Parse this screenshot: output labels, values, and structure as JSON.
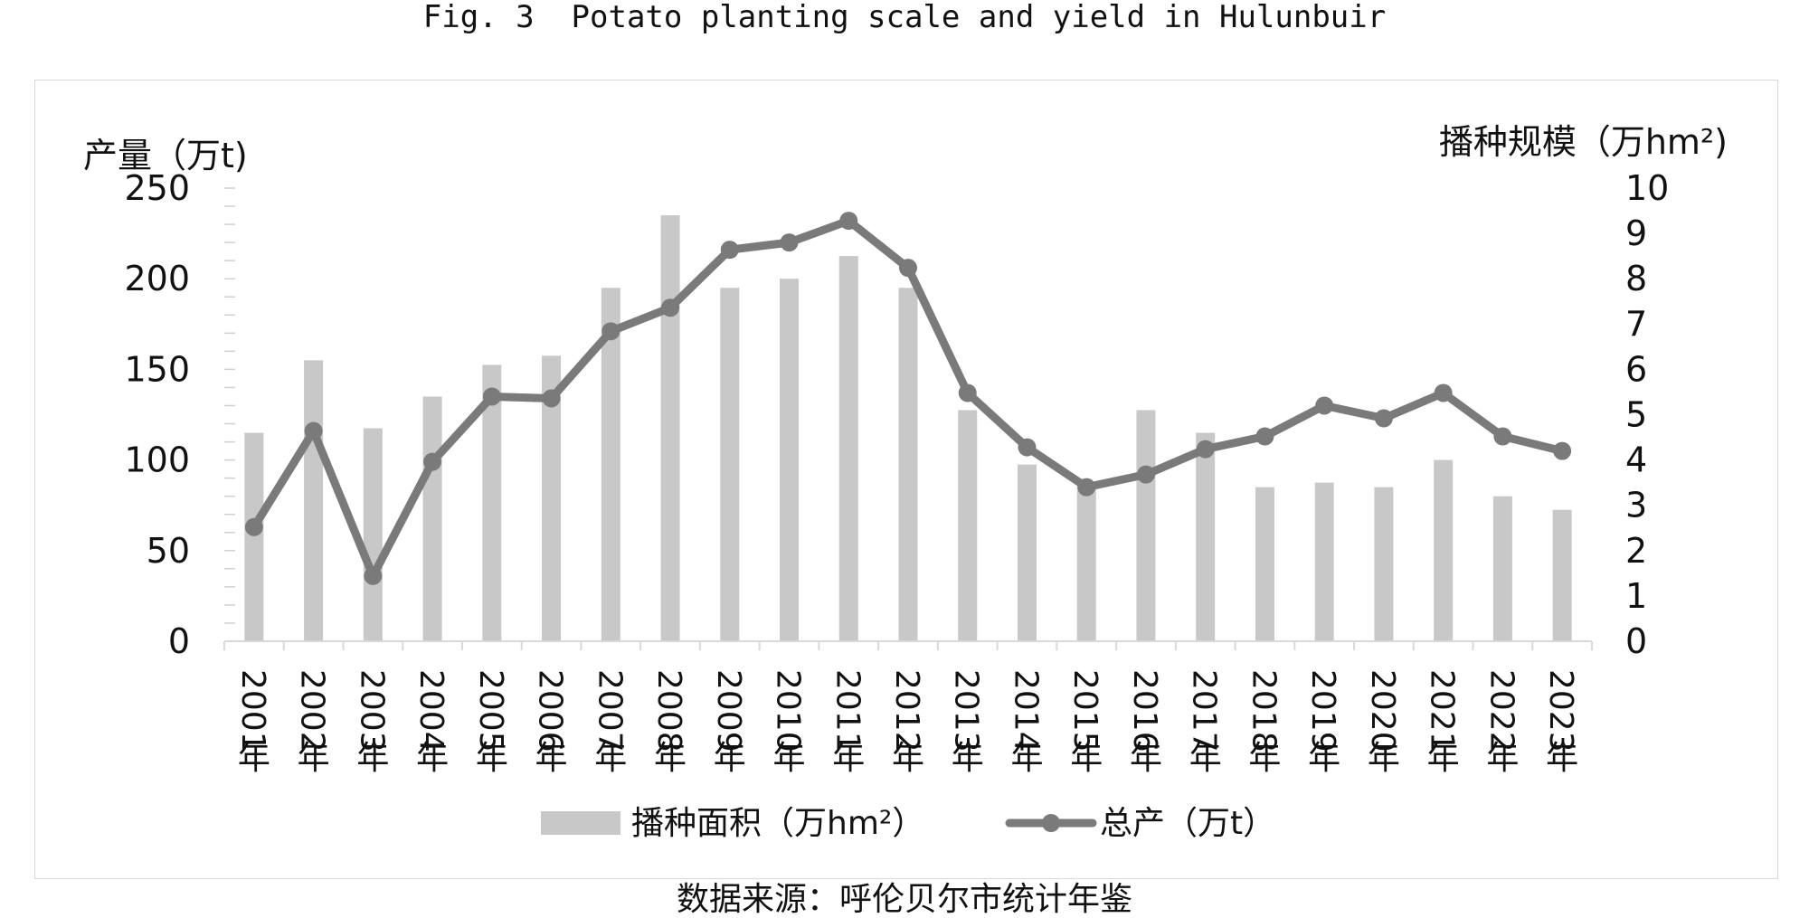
{
  "figure": {
    "title": "Fig. 3  Potato planting scale and yield in Hulunbuir",
    "source": "数据来源：呼伦贝尔市统计年鉴"
  },
  "chart_data": {
    "type": "bar+line",
    "categories": [
      "2001年",
      "2002年",
      "2003年",
      "2004年",
      "2005年",
      "2006年",
      "2007年",
      "2008年",
      "2009年",
      "2010年",
      "2011年",
      "2012年",
      "2013年",
      "2014年",
      "2015年",
      "2016年",
      "2017年",
      "2018年",
      "2019年",
      "2020年",
      "2021年",
      "2022年",
      "2023年"
    ],
    "y_left": {
      "label": "产量（万t)",
      "range": [
        0,
        250
      ],
      "ticks": [
        0,
        50,
        100,
        150,
        200,
        250
      ]
    },
    "y_right": {
      "label": "播种规模（万hm²)",
      "range": [
        0,
        10
      ],
      "ticks": [
        0,
        1,
        2,
        3,
        4,
        5,
        6,
        7,
        8,
        9,
        10
      ]
    },
    "series": [
      {
        "name": "播种面积（万hm²）",
        "kind": "bar",
        "axis": "right",
        "color": "#c8c8c8",
        "values": [
          4.6,
          6.2,
          4.7,
          5.4,
          6.1,
          6.3,
          7.8,
          9.4,
          7.8,
          8.0,
          8.5,
          7.8,
          5.1,
          3.9,
          3.4,
          5.1,
          4.6,
          3.4,
          3.5,
          3.4,
          4.0,
          3.2,
          2.9
        ]
      },
      {
        "name": "总产（万t）",
        "kind": "line",
        "axis": "left",
        "color": "#7a7a7a",
        "values": [
          63,
          116,
          36,
          99,
          135,
          134,
          171,
          184,
          216,
          220,
          232,
          206,
          137,
          107,
          85,
          92,
          106,
          113,
          130,
          123,
          137,
          113,
          105
        ]
      }
    ],
    "grid": false,
    "legend_position": "bottom"
  }
}
